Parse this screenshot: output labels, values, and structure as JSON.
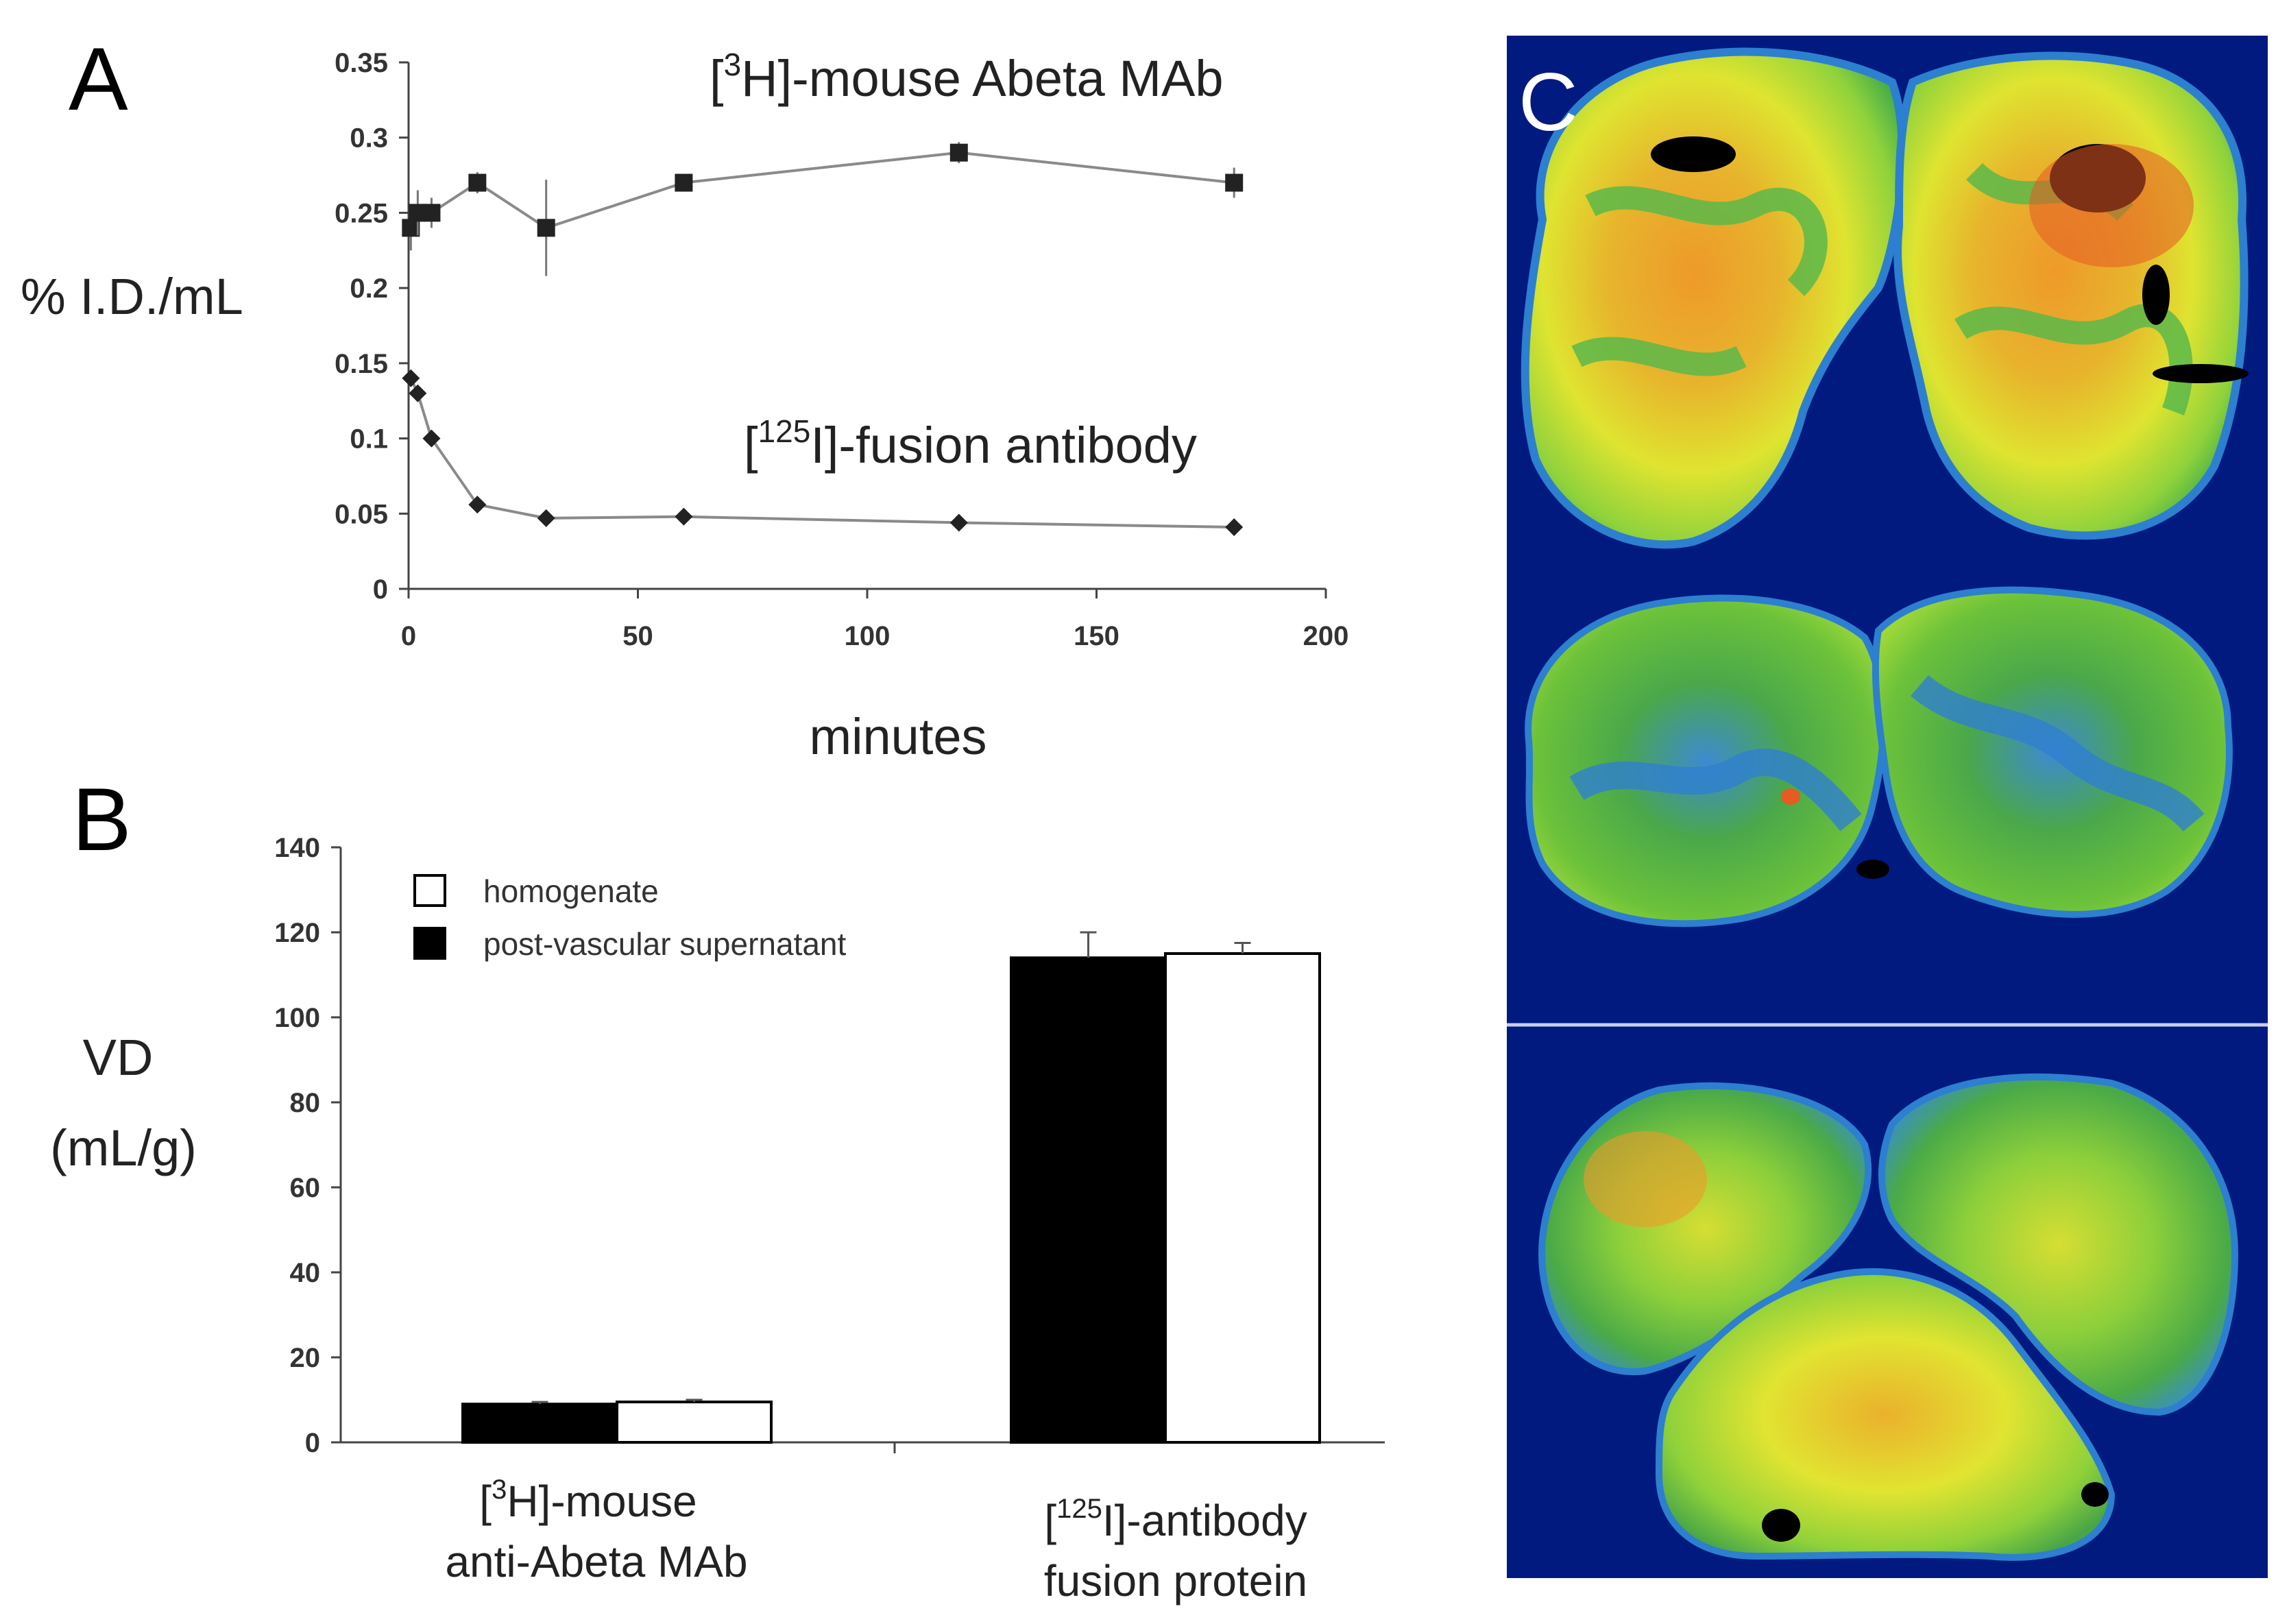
{
  "panels": {
    "a_letter": "A",
    "b_letter": "B",
    "c_letter": "C"
  },
  "chart_data": [
    {
      "type": "line",
      "panel": "A",
      "xlabel": "minutes",
      "ylabel": "% I.D./mL",
      "xlim": [
        0,
        200
      ],
      "ylim": [
        0,
        0.35
      ],
      "xticks": [
        "0",
        "50",
        "100",
        "150",
        "200"
      ],
      "yticks": [
        "0",
        "0.05",
        "0.1",
        "0.15",
        "0.2",
        "0.25",
        "0.3",
        "0.35"
      ],
      "grid": false,
      "series": [
        {
          "name_parts": [
            "[",
            "3",
            "H]-mouse Abeta MAb"
          ],
          "marker": "square",
          "color": "#222222",
          "x": [
            0.5,
            2,
            5,
            15,
            30,
            60,
            120,
            180
          ],
          "y": [
            0.24,
            0.25,
            0.25,
            0.27,
            0.24,
            0.27,
            0.29,
            0.27
          ],
          "err": [
            0.015,
            0.015,
            0.01,
            0.007,
            0.032,
            0.005,
            0.007,
            0.01
          ]
        },
        {
          "name_parts": [
            "[",
            "125",
            "I]-fusion antibody"
          ],
          "marker": "diamond",
          "color": "#222222",
          "x": [
            0.5,
            2,
            5,
            15,
            30,
            60,
            120,
            180
          ],
          "y": [
            0.14,
            0.13,
            0.1,
            0.056,
            0.047,
            0.048,
            0.044,
            0.041
          ],
          "err": [
            0,
            0,
            0,
            0,
            0,
            0,
            0,
            0
          ]
        }
      ]
    },
    {
      "type": "bar",
      "panel": "B",
      "ylabel_lines": [
        "VD",
        "(mL/g)"
      ],
      "ylim": [
        0,
        140
      ],
      "yticks": [
        "0",
        "20",
        "40",
        "60",
        "80",
        "100",
        "120",
        "140"
      ],
      "categories": [
        {
          "lines": [
            [
              "[",
              "3",
              "H]-mouse"
            ],
            [
              "anti-Abeta MAb"
            ]
          ]
        },
        {
          "lines": [
            [
              "[",
              "125",
              "I]-antibody"
            ],
            [
              "fusion protein"
            ]
          ]
        }
      ],
      "legend": [
        {
          "label": "homogenate",
          "fill": "#ffffff"
        },
        {
          "label": "post-vascular supernatant",
          "fill": "#000000"
        }
      ],
      "legend_position": "top-left",
      "series": [
        {
          "label": "post-vascular supernatant",
          "fill": "#000000",
          "values": [
            9,
            114
          ],
          "err": [
            0.5,
            6
          ]
        },
        {
          "label": "homogenate",
          "fill": "#ffffff",
          "values": [
            9.5,
            115
          ],
          "err": [
            0.5,
            2.5
          ]
        }
      ]
    }
  ],
  "autoradiograph": {
    "section_count": 3,
    "background": "#001a80",
    "palette": [
      "#0d3fa0",
      "#2f7fcf",
      "#4aae3e",
      "#8ad23a",
      "#e6e82e",
      "#f0a32a",
      "#e65a24",
      "#000000"
    ]
  }
}
